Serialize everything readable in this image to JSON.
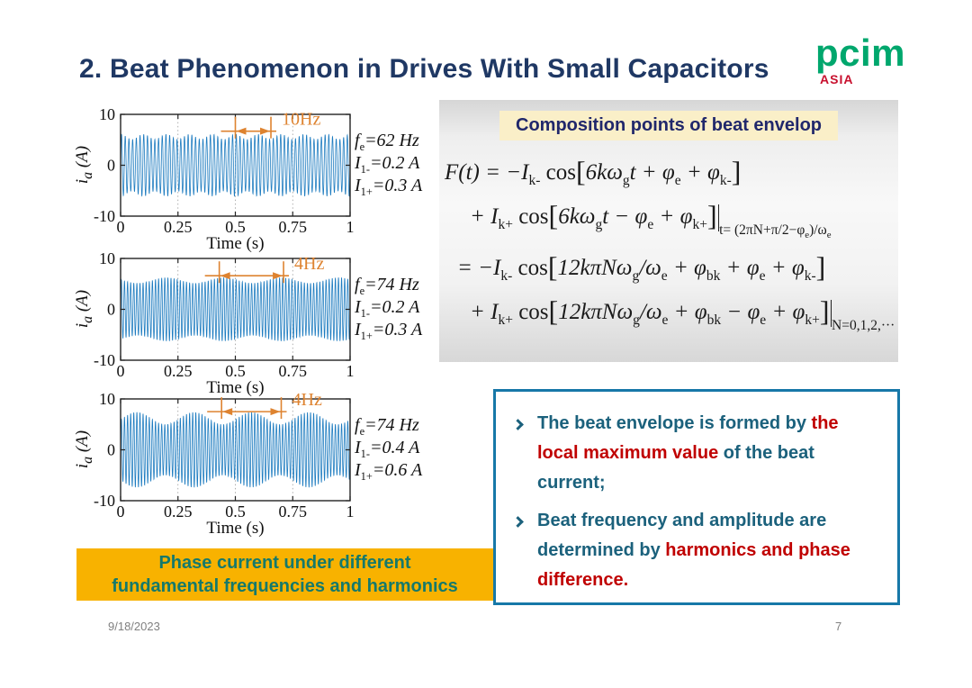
{
  "slide": {
    "title": "2. Beat Phenomenon in Drives With Small Capacitors",
    "logo": {
      "main": "pcim",
      "sub": "ASIA"
    },
    "footer": {
      "date": "9/18/2023",
      "page": "7"
    }
  },
  "colors": {
    "title": "#1F3864",
    "wave": "#1E7CC0",
    "annotation": "#DE8330",
    "bullet_text": "#1B617C",
    "bullet_accent": "#C00000",
    "box_border": "#1778A8",
    "caption_bg": "#F8B200",
    "caption_text": "#15796B",
    "logo_green": "#00A76D",
    "logo_red": "#C8102E",
    "header_bg": "#FAEFC8",
    "footer_gray": "#808080",
    "axis": "#222222"
  },
  "chart_data": [
    {
      "type": "line",
      "title": "",
      "xlabel": "Time (s)",
      "ylabel": "*i*~a~ (A)",
      "xlim": [
        0,
        1
      ],
      "ylim": [
        -10,
        10
      ],
      "xticks": [
        0,
        0.25,
        0.5,
        0.75,
        1
      ],
      "xtick_labels": [
        "0",
        "0.25",
        "0.5",
        "0.75",
        "1"
      ],
      "yticks": [
        10,
        0,
        -10
      ],
      "grid": "vertical-dotted",
      "signal": {
        "carrier_hz": 62,
        "beat_hz": 10,
        "base_amp": 5.6,
        "mod_amp": 0.5,
        "beat_phase_rad": 0
      },
      "annotation": {
        "label": "10Hz",
        "t1": 0.5,
        "t2": 0.655,
        "y": 6.7
      },
      "side_labels": [
        "*f*~e~=62 Hz",
        "*I*~1-~=0.2 A",
        "*I*~1+~=0.3 A"
      ]
    },
    {
      "type": "line",
      "title": "",
      "xlabel": "Time (s)",
      "ylabel": "*i*~a~ (A)",
      "xlim": [
        0,
        1
      ],
      "ylim": [
        -10,
        10
      ],
      "xticks": [
        0,
        0.25,
        0.5,
        0.75,
        1
      ],
      "xtick_labels": [
        "0",
        "0.25",
        "0.5",
        "0.75",
        "1"
      ],
      "yticks": [
        10,
        0,
        -10
      ],
      "grid": "vertical-dotted",
      "signal": {
        "carrier_hz": 74,
        "beat_hz": 4,
        "base_amp": 5.7,
        "mod_amp": 0.55,
        "beat_phase_rad": 1.26
      },
      "annotation": {
        "label": "4Hz",
        "t1": 0.43,
        "t2": 0.71,
        "y": 6.6
      },
      "side_labels": [
        "*f*~e~=74 Hz",
        "*I*~1-~=0.2 A",
        "*I*~1+~=0.3 A"
      ]
    },
    {
      "type": "line",
      "title": "",
      "xlabel": "Time (s)",
      "ylabel": "*i*~a~ (A)",
      "xlim": [
        0,
        1
      ],
      "ylim": [
        -10,
        10
      ],
      "xticks": [
        0,
        0.25,
        0.5,
        0.75,
        1
      ],
      "xtick_labels": [
        "0",
        "0.25",
        "0.5",
        "0.75",
        "1"
      ],
      "yticks": [
        10,
        0,
        -10
      ],
      "grid": "vertical-dotted",
      "signal": {
        "carrier_hz": 74,
        "beat_hz": 4,
        "base_amp": 6.2,
        "mod_amp": 1.2,
        "beat_phase_rad": -1.76
      },
      "annotation": {
        "label": "4Hz",
        "t1": 0.44,
        "t2": 0.7,
        "y": 7.5
      },
      "side_labels": [
        "*f*~e~=74 Hz",
        "*I*~1-~=0.4 A",
        "*I*~1+~=0.6 A"
      ]
    }
  ],
  "formula_panel": {
    "header": "Composition points of beat envelop",
    "lines": [
      {
        "main": "F(t) = −I~k-~ !cos!^[^6kω~g~t + φ~e~ + φ~k-~^]^",
        "eval_sub": ""
      },
      {
        "main": "+ I~k+~ !cos!^[^6kω~g~t − φ~e~ + φ~k+~^]^",
        "eval_sub": "t= (2πN+π/2−φ~e~)/ω~e~"
      },
      {
        "main": "= −I~k-~ !cos!^[^12kπNω~g~/ω~e~ + φ~bk~ + φ~e~ + φ~k-~^]^",
        "eval_sub": ""
      },
      {
        "main": "+ I~k+~ !cos!^[^12kπNω~g~/ω~e~ + φ~bk~ − φ~e~ + φ~k+~^]^",
        "eval_sub": "N=0,1,2,···"
      }
    ]
  },
  "bullet_box": {
    "bullets": [
      {
        "segments": [
          {
            "text": "The beat envelope is formed by ",
            "color": "main"
          },
          {
            "text": "the local maximum value",
            "color": "accent"
          },
          {
            "text": " of the beat current;",
            "color": "main"
          }
        ]
      },
      {
        "segments": [
          {
            "text": "Beat frequency and amplitude are determined by ",
            "color": "main"
          },
          {
            "text": "harmonics and phase difference.",
            "color": "accent"
          }
        ]
      }
    ]
  },
  "caption_box": {
    "lines": [
      "Phase current under different",
      "fundamental frequencies and harmonics"
    ]
  }
}
